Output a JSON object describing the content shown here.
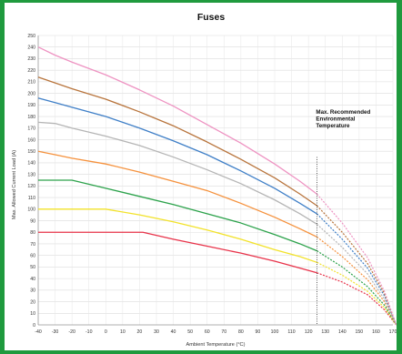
{
  "chart_data": {
    "type": "line",
    "title": "Fuses",
    "xlabel": "Ambient Temperature (°C)",
    "ylabel": "Max. Allowed Current Load (A)",
    "xlim": [
      -40,
      170
    ],
    "ylim": [
      0,
      250
    ],
    "x_ticks": [
      -40,
      -30,
      -20,
      -10,
      0,
      10,
      20,
      30,
      40,
      50,
      60,
      70,
      80,
      90,
      100,
      110,
      120,
      130,
      140,
      150,
      160,
      170
    ],
    "y_ticks": [
      0,
      10,
      20,
      30,
      40,
      50,
      60,
      70,
      80,
      90,
      100,
      110,
      120,
      130,
      140,
      150,
      160,
      170,
      180,
      190,
      200,
      210,
      220,
      230,
      240,
      250
    ],
    "grid": true,
    "legend": "none",
    "annotation": {
      "lines": [
        "Max. Recommended",
        "Environmental",
        "Temperature"
      ],
      "x": 125
    },
    "max_temp_x": 125,
    "end_x": 172,
    "series": [
      {
        "color": "#e8334a",
        "points": [
          [
            -40,
            80
          ],
          [
            -30,
            80
          ],
          [
            -10,
            80
          ],
          [
            22,
            80
          ],
          [
            40,
            74
          ],
          [
            60,
            68
          ],
          [
            80,
            62
          ],
          [
            100,
            55
          ],
          [
            115,
            49
          ],
          [
            125,
            45
          ]
        ],
        "dashed": [
          [
            125,
            45
          ],
          [
            140,
            37
          ],
          [
            155,
            26
          ],
          [
            165,
            13
          ],
          [
            172,
            0
          ]
        ]
      },
      {
        "color": "#f2e22a",
        "points": [
          [
            -40,
            100
          ],
          [
            -10,
            100
          ],
          [
            0,
            100
          ],
          [
            20,
            95
          ],
          [
            40,
            89
          ],
          [
            60,
            82
          ],
          [
            80,
            74
          ],
          [
            100,
            65
          ],
          [
            115,
            59
          ],
          [
            125,
            54
          ]
        ],
        "dashed": [
          [
            125,
            54
          ],
          [
            140,
            43
          ],
          [
            155,
            29
          ],
          [
            165,
            15
          ],
          [
            172,
            0
          ]
        ]
      },
      {
        "color": "#2ca24b",
        "points": [
          [
            -40,
            125
          ],
          [
            -20,
            125
          ],
          [
            0,
            118
          ],
          [
            20,
            111
          ],
          [
            40,
            104
          ],
          [
            60,
            96
          ],
          [
            80,
            88
          ],
          [
            100,
            78
          ],
          [
            115,
            70
          ],
          [
            125,
            64
          ]
        ],
        "dashed": [
          [
            125,
            64
          ],
          [
            140,
            50
          ],
          [
            155,
            33
          ],
          [
            165,
            17
          ],
          [
            172,
            0
          ]
        ]
      },
      {
        "color": "#f5913c",
        "points": [
          [
            -40,
            150
          ],
          [
            -30,
            147
          ],
          [
            -20,
            144
          ],
          [
            0,
            139
          ],
          [
            20,
            132
          ],
          [
            40,
            124
          ],
          [
            60,
            116
          ],
          [
            80,
            105
          ],
          [
            100,
            93
          ],
          [
            115,
            83
          ],
          [
            125,
            76
          ]
        ],
        "dashed": [
          [
            125,
            76
          ],
          [
            140,
            59
          ],
          [
            155,
            39
          ],
          [
            165,
            20
          ],
          [
            172,
            0
          ]
        ]
      },
      {
        "color": "#b5b5b5",
        "points": [
          [
            -40,
            175
          ],
          [
            -30,
            174
          ],
          [
            -20,
            170
          ],
          [
            0,
            163
          ],
          [
            20,
            155
          ],
          [
            40,
            145
          ],
          [
            60,
            134
          ],
          [
            80,
            122
          ],
          [
            100,
            108
          ],
          [
            115,
            96
          ],
          [
            125,
            87
          ]
        ],
        "dashed": [
          [
            125,
            87
          ],
          [
            140,
            67
          ],
          [
            155,
            44
          ],
          [
            165,
            22
          ],
          [
            172,
            0
          ]
        ]
      },
      {
        "color": "#3f7fc7",
        "points": [
          [
            -40,
            196
          ],
          [
            -30,
            192
          ],
          [
            -20,
            188
          ],
          [
            0,
            180
          ],
          [
            20,
            170
          ],
          [
            40,
            159
          ],
          [
            60,
            147
          ],
          [
            80,
            133
          ],
          [
            100,
            118
          ],
          [
            115,
            105
          ],
          [
            125,
            96
          ]
        ],
        "dashed": [
          [
            125,
            96
          ],
          [
            140,
            74
          ],
          [
            155,
            49
          ],
          [
            165,
            25
          ],
          [
            172,
            0
          ]
        ]
      },
      {
        "color": "#b8743c",
        "points": [
          [
            -40,
            214
          ],
          [
            -30,
            209
          ],
          [
            -20,
            204
          ],
          [
            0,
            195
          ],
          [
            20,
            184
          ],
          [
            40,
            172
          ],
          [
            60,
            158
          ],
          [
            80,
            143
          ],
          [
            100,
            127
          ],
          [
            115,
            113
          ],
          [
            125,
            103
          ]
        ],
        "dashed": [
          [
            125,
            103
          ],
          [
            140,
            80
          ],
          [
            155,
            53
          ],
          [
            165,
            27
          ],
          [
            172,
            0
          ]
        ]
      },
      {
        "color": "#ee93c2",
        "points": [
          [
            -40,
            240
          ],
          [
            -30,
            233
          ],
          [
            -20,
            227
          ],
          [
            0,
            216
          ],
          [
            20,
            203
          ],
          [
            40,
            189
          ],
          [
            60,
            173
          ],
          [
            80,
            157
          ],
          [
            100,
            139
          ],
          [
            115,
            124
          ],
          [
            125,
            113
          ]
        ],
        "dashed": [
          [
            125,
            113
          ],
          [
            140,
            88
          ],
          [
            155,
            58
          ],
          [
            165,
            29
          ],
          [
            172,
            0
          ]
        ]
      }
    ]
  }
}
